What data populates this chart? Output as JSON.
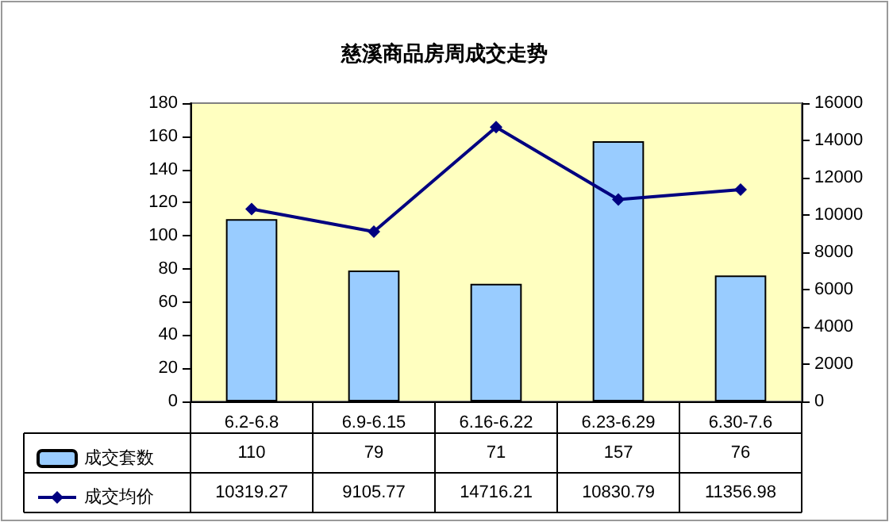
{
  "chart_data": {
    "type": "bar",
    "title": "慈溪商品房周成交走势",
    "categories": [
      "6.2-6.8",
      "6.9-6.15",
      "6.16-6.22",
      "6.23-6.29",
      "6.30-7.6"
    ],
    "series": [
      {
        "name": "成交套数",
        "color": "#99ccff",
        "values": [
          110,
          79,
          71,
          157,
          76
        ]
      },
      {
        "name": "成交均价",
        "type": "line",
        "axis": "y2",
        "color": "#000080",
        "values": [
          10319.27,
          9105.77,
          14716.21,
          10830.79,
          11356.98
        ]
      }
    ],
    "ylim": [
      0,
      180
    ],
    "yticks": [
      0,
      20,
      40,
      60,
      80,
      100,
      120,
      140,
      160,
      180
    ],
    "y2lim": [
      0,
      16000
    ],
    "y2ticks": [
      0,
      2000,
      4000,
      6000,
      8000,
      10000,
      12000,
      14000,
      16000
    ],
    "data_labels": true,
    "grid": false,
    "legend": "bottom left",
    "marker": "diamond",
    "line_style": "solid"
  }
}
